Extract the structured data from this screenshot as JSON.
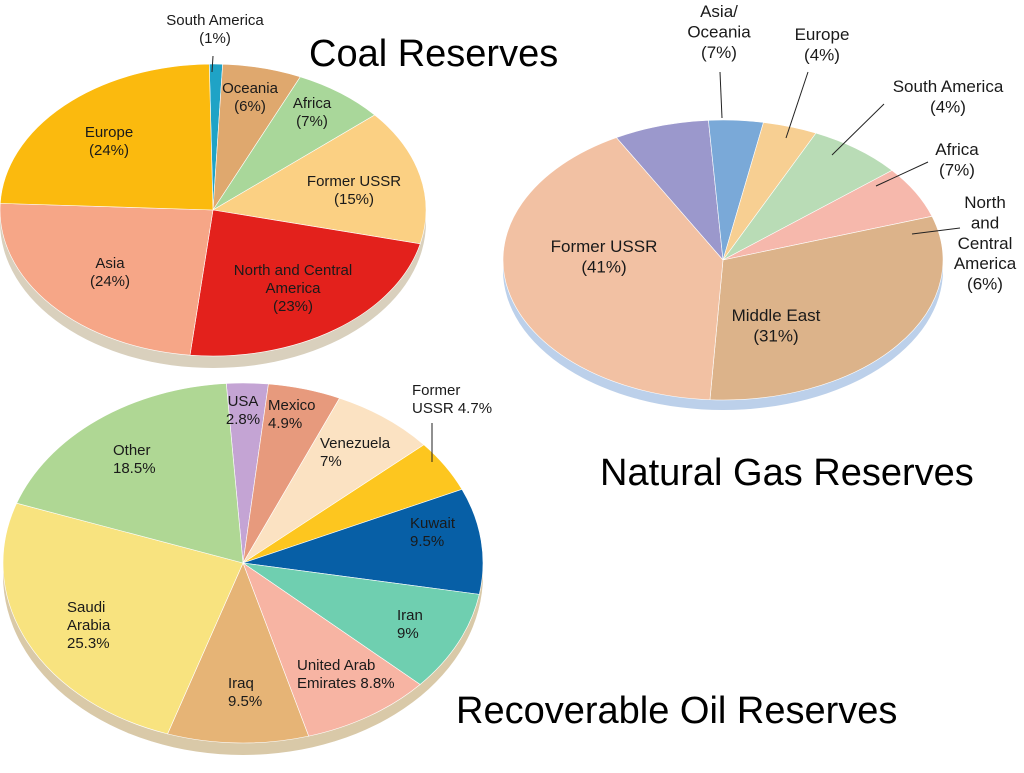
{
  "chart_data": [
    {
      "type": "pie",
      "title": "Coal Reserves",
      "slices": [
        {
          "label": "South America",
          "pct_label": "(1%)",
          "value": 1,
          "color": "#1fa3c6"
        },
        {
          "label": "Oceania",
          "pct_label": "(6%)",
          "value": 6,
          "color": "#dfa86e"
        },
        {
          "label": "Africa",
          "pct_label": "(7%)",
          "value": 7,
          "color": "#a9d79a"
        },
        {
          "label": "Former USSR",
          "pct_label": "(15%)",
          "value": 15,
          "color": "#fbd083"
        },
        {
          "label": "North and Central America",
          "pct_label": "(23%)",
          "value": 23,
          "color": "#e3211c"
        },
        {
          "label": "Asia",
          "pct_label": "(24%)",
          "value": 24,
          "color": "#f6a687"
        },
        {
          "label": "Europe",
          "pct_label": "(24%)",
          "value": 24,
          "color": "#fbba0e"
        }
      ]
    },
    {
      "type": "pie",
      "title": "Natural Gas Reserves",
      "slices": [
        {
          "label": "Asia/ Oceania",
          "pct_label": "(7%)",
          "value": 7,
          "color": "#9b98cc"
        },
        {
          "label": "Europe",
          "pct_label": "(4%)",
          "value": 4,
          "color": "#7aa9d8"
        },
        {
          "label": "South America",
          "pct_label": "(4%)",
          "value": 4,
          "color": "#f7cf92"
        },
        {
          "label": "Africa",
          "pct_label": "(7%)",
          "value": 7,
          "color": "#b9dcb6"
        },
        {
          "label": "North and Central America",
          "pct_label": "(6%)",
          "value": 6,
          "color": "#f6b8ac"
        },
        {
          "label": "Middle East",
          "pct_label": "(31%)",
          "value": 31,
          "color": "#dcb38a"
        },
        {
          "label": "Former USSR",
          "pct_label": "(41%)",
          "value": 41,
          "color": "#f2c1a3"
        }
      ]
    },
    {
      "type": "pie",
      "title": "Recoverable Oil Reserves",
      "slices": [
        {
          "label": "USA",
          "pct_label": "2.8%",
          "value": 2.8,
          "color": "#c4a4d4"
        },
        {
          "label": "Mexico",
          "pct_label": "4.9%",
          "value": 4.9,
          "color": "#e79a7d"
        },
        {
          "label": "Venezuela",
          "pct_label": "7%",
          "value": 7,
          "color": "#fbe2c2"
        },
        {
          "label": "Former USSR",
          "pct_label": "4.7%",
          "value": 4.7,
          "color": "#fdc61f"
        },
        {
          "label": "Kuwait",
          "pct_label": "9.5%",
          "value": 9.5,
          "color": "#075fa6"
        },
        {
          "label": "Iran",
          "pct_label": "9%",
          "value": 9,
          "color": "#6fcfb0"
        },
        {
          "label": "United Arab Emirates",
          "pct_label": "8.8%",
          "value": 8.8,
          "color": "#f7b4a3"
        },
        {
          "label": "Iraq",
          "pct_label": "9.5%",
          "value": 9.5,
          "color": "#e6b476"
        },
        {
          "label": "Saudi Arabia",
          "pct_label": "25.3%",
          "value": 25.3,
          "color": "#f8e37f"
        },
        {
          "label": "Other",
          "pct_label": "18.5%",
          "value": 18.5,
          "color": "#afd794"
        }
      ]
    }
  ]
}
